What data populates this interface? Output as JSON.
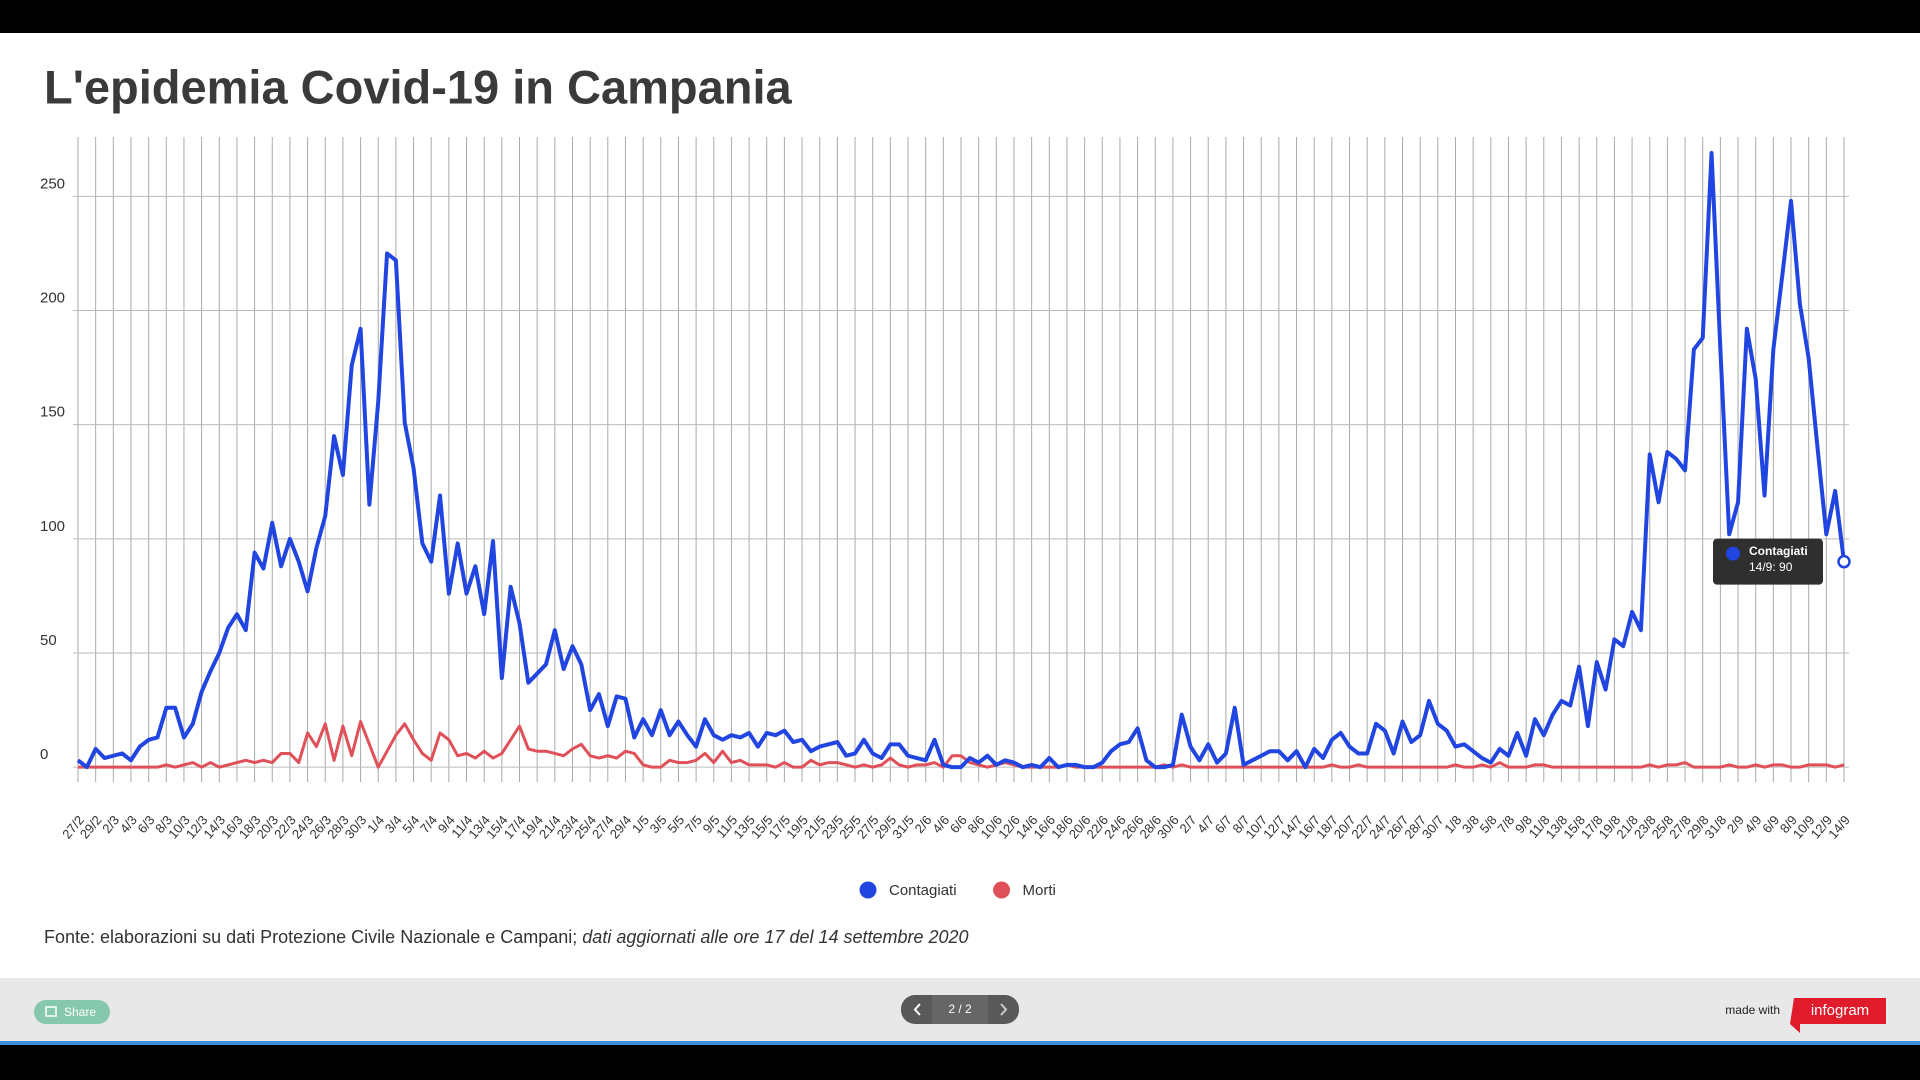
{
  "chart_data": {
    "type": "line",
    "title": "L'epidemia Covid-19 in Campania",
    "categories": [
      "27/2",
      null,
      "29/2",
      null,
      "2/3",
      null,
      "4/3",
      null,
      "6/3",
      null,
      "8/3",
      null,
      "10/3",
      null,
      "12/3",
      null,
      "14/3",
      null,
      "16/3",
      null,
      "18/3",
      null,
      "20/3",
      null,
      "22/3",
      null,
      "24/3",
      null,
      "26/3",
      null,
      "28/3",
      null,
      "30/3",
      null,
      "1/4",
      null,
      "3/4",
      null,
      "5/4",
      null,
      "7/4",
      null,
      "9/4",
      null,
      "11/4",
      null,
      "13/4",
      null,
      "15/4",
      null,
      "17/4",
      null,
      "19/4",
      null,
      "21/4",
      null,
      "23/4",
      null,
      "25/4",
      null,
      "27/4",
      null,
      "29/4",
      null,
      "1/5",
      null,
      "3/5",
      null,
      "5/5",
      null,
      "7/5",
      null,
      "9/5",
      null,
      "11/5",
      null,
      "13/5",
      null,
      "15/5",
      null,
      "17/5",
      null,
      "19/5",
      null,
      "21/5",
      null,
      "23/5",
      null,
      "25/5",
      null,
      "27/5",
      null,
      "29/5",
      null,
      "31/5",
      null,
      "2/6",
      null,
      "4/6",
      null,
      "6/6",
      null,
      "8/6",
      null,
      "10/6",
      null,
      "12/6",
      null,
      "14/6",
      null,
      "16/6",
      null,
      "18/6",
      null,
      "20/6",
      null,
      "22/6",
      null,
      "24/6",
      null,
      "26/6",
      null,
      "28/6",
      null,
      "30/6",
      null,
      "2/7",
      null,
      "4/7",
      null,
      "6/7",
      null,
      "8/7",
      null,
      "10/7",
      null,
      "12/7",
      null,
      "14/7",
      null,
      "16/7",
      null,
      "18/7",
      null,
      "20/7",
      null,
      "22/7",
      null,
      "24/7",
      null,
      "26/7",
      null,
      "28/7",
      null,
      "30/7",
      null,
      "1/8",
      null,
      "3/8",
      null,
      "5/8",
      null,
      "7/8",
      null,
      "9/8",
      null,
      "11/8",
      null,
      "13/8",
      null,
      "15/8",
      null,
      "17/8",
      null,
      "19/8",
      null,
      "21/8",
      null,
      "23/8",
      null,
      "25/8",
      null,
      "27/8",
      null,
      "29/8",
      null,
      "31/8",
      null,
      "2/9",
      null,
      "4/9",
      null,
      "6/9",
      null,
      "8/9",
      null,
      "10/9",
      null,
      "12/9",
      null,
      "14/9"
    ],
    "series": [
      {
        "name": "Contagiati",
        "color": "#2145e0",
        "values": [
          3,
          0,
          8,
          4,
          5,
          6,
          3,
          9,
          12,
          13,
          26,
          26,
          13,
          19,
          33,
          42,
          50,
          61,
          67,
          60,
          94,
          87,
          107,
          88,
          100,
          90,
          77,
          96,
          110,
          145,
          128,
          176,
          192,
          115,
          160,
          225,
          222,
          151,
          131,
          98,
          90,
          119,
          76,
          98,
          76,
          88,
          67,
          99,
          39,
          79,
          63,
          37,
          41,
          45,
          60,
          43,
          53,
          45,
          25,
          32,
          18,
          31,
          30,
          13,
          21,
          14,
          25,
          14,
          20,
          14,
          9,
          21,
          14,
          12,
          14,
          13,
          15,
          9,
          15,
          14,
          16,
          11,
          12,
          7,
          9,
          10,
          11,
          5,
          6,
          12,
          6,
          4,
          10,
          10,
          5,
          4,
          3,
          12,
          1,
          0,
          0,
          4,
          2,
          5,
          1,
          3,
          2,
          0,
          1,
          0,
          4,
          0,
          1,
          1,
          0,
          0,
          2,
          7,
          10,
          11,
          17,
          3,
          0,
          0,
          1,
          23,
          9,
          3,
          10,
          2,
          6,
          26,
          1,
          3,
          5,
          7,
          7,
          3,
          7,
          0,
          8,
          4,
          12,
          15,
          9,
          6,
          6,
          19,
          16,
          6,
          20,
          11,
          14,
          29,
          19,
          16,
          9,
          10,
          7,
          4,
          2,
          8,
          5,
          15,
          5,
          21,
          14,
          23,
          29,
          27,
          44,
          18,
          46,
          34,
          56,
          53,
          68,
          60,
          137,
          116,
          138,
          135,
          130,
          183,
          188,
          269,
          183,
          102,
          116,
          192,
          170,
          119,
          183,
          215,
          248,
          203,
          179,
          140,
          102,
          121,
          90
        ]
      },
      {
        "name": "Morti",
        "color": "#e05058",
        "values": [
          0,
          0,
          0,
          0,
          0,
          0,
          0,
          0,
          0,
          0,
          1,
          0,
          1,
          2,
          0,
          2,
          0,
          1,
          2,
          3,
          2,
          3,
          2,
          6,
          6,
          2,
          15,
          9,
          19,
          3,
          18,
          5,
          20,
          10,
          0,
          7,
          14,
          19,
          12,
          6,
          3,
          15,
          12,
          5,
          6,
          4,
          7,
          4,
          6,
          12,
          18,
          8,
          7,
          7,
          6,
          5,
          8,
          10,
          5,
          4,
          5,
          4,
          7,
          6,
          1,
          0,
          0,
          3,
          2,
          2,
          3,
          6,
          2,
          7,
          2,
          3,
          1,
          1,
          1,
          0,
          2,
          0,
          0,
          3,
          1,
          2,
          2,
          1,
          0,
          1,
          0,
          1,
          4,
          1,
          0,
          1,
          1,
          2,
          0,
          5,
          5,
          2,
          1,
          0,
          1,
          2,
          1,
          0,
          0,
          0,
          0,
          0,
          1,
          0,
          0,
          0,
          0,
          0,
          0,
          0,
          0,
          0,
          0,
          1,
          0,
          1,
          0,
          0,
          0,
          0,
          0,
          0,
          0,
          0,
          0,
          0,
          0,
          0,
          0,
          0,
          0,
          0,
          1,
          0,
          0,
          1,
          0,
          0,
          0,
          0,
          0,
          0,
          0,
          0,
          0,
          0,
          1,
          0,
          0,
          1,
          0,
          2,
          0,
          0,
          0,
          1,
          1,
          0,
          0,
          0,
          0,
          0,
          0,
          0,
          0,
          0,
          0,
          0,
          1,
          0,
          1,
          1,
          2,
          0,
          0,
          0,
          0,
          1,
          0,
          0,
          1,
          0,
          1,
          1,
          0,
          0,
          1,
          1,
          1,
          0,
          1
        ]
      }
    ],
    "ylim": [
      -10,
      276
    ],
    "yticks": [
      0,
      50,
      100,
      150,
      200,
      250
    ],
    "grid": true,
    "legend": "bottom",
    "tooltip": {
      "series": "Contagiati",
      "label": "14/9: 90"
    }
  },
  "source": {
    "text": "Fonte: elaborazioni su dati Protezione Civile Nazionale e Campani; ",
    "note": "dati aggiornati alle ore 17 del 14 settembre 2020"
  },
  "footer": {
    "share": "Share",
    "page": "2 / 2",
    "made_with": "made with",
    "brand": "infogram"
  }
}
